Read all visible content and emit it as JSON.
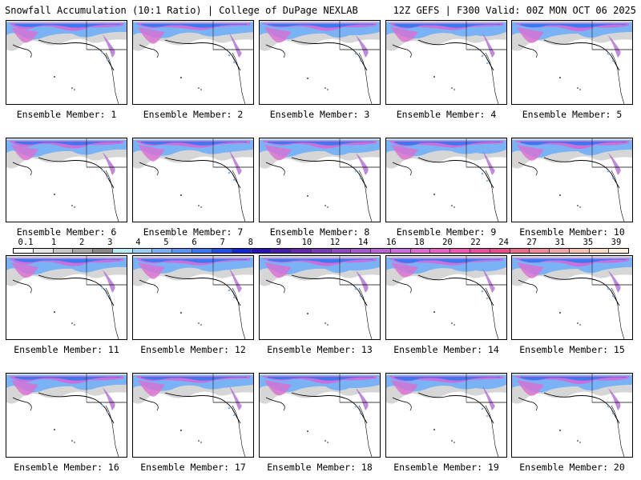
{
  "header": {
    "title_left": "Snowfall Accumulation (10:1 Ratio) | College of DuPage NEXLAB",
    "title_right": "12Z GEFS | F300 Valid: 00Z MON OCT 06 2025"
  },
  "members": [
    {
      "label": "Ensemble Member: 1"
    },
    {
      "label": "Ensemble Member: 2"
    },
    {
      "label": "Ensemble Member: 3"
    },
    {
      "label": "Ensemble Member: 4"
    },
    {
      "label": "Ensemble Member: 5"
    },
    {
      "label": "Ensemble Member: 6"
    },
    {
      "label": "Ensemble Member: 7"
    },
    {
      "label": "Ensemble Member: 8"
    },
    {
      "label": "Ensemble Member: 9"
    },
    {
      "label": "Ensemble Member: 10"
    },
    {
      "label": "Ensemble Member: 11"
    },
    {
      "label": "Ensemble Member: 12"
    },
    {
      "label": "Ensemble Member: 13"
    },
    {
      "label": "Ensemble Member: 14"
    },
    {
      "label": "Ensemble Member: 15"
    },
    {
      "label": "Ensemble Member: 16"
    },
    {
      "label": "Ensemble Member: 17"
    },
    {
      "label": "Ensemble Member: 18"
    },
    {
      "label": "Ensemble Member: 19"
    },
    {
      "label": "Ensemble Member: 20"
    }
  ],
  "colorbar": {
    "labels": [
      "0.1",
      "1",
      "2",
      "3",
      "4",
      "5",
      "6",
      "7",
      "8",
      "9",
      "10",
      "12",
      "14",
      "16",
      "18",
      "20",
      "22",
      "24",
      "27",
      "31",
      "35",
      "39"
    ],
    "colors": [
      "#ffffff",
      "#e6e6e6",
      "#c8c8c8",
      "#a8a8a8",
      "#888888",
      "#b7eef5",
      "#9ad0f5",
      "#7ab3f5",
      "#5a96f5",
      "#3c78f0",
      "#2050e6",
      "#1428d2",
      "#2814b4",
      "#461eaa",
      "#6428aa",
      "#7a3cb4",
      "#8e4cbe",
      "#a45ac8",
      "#b864d2",
      "#cc6edc",
      "#dc6ed2",
      "#e664c8",
      "#ec5ab4",
      "#ec50a0",
      "#e6508c",
      "#e66e8c",
      "#eb8c9a",
      "#f0a8a8",
      "#f5c3b4",
      "#fadcc8",
      "#fff0e1"
    ]
  }
}
